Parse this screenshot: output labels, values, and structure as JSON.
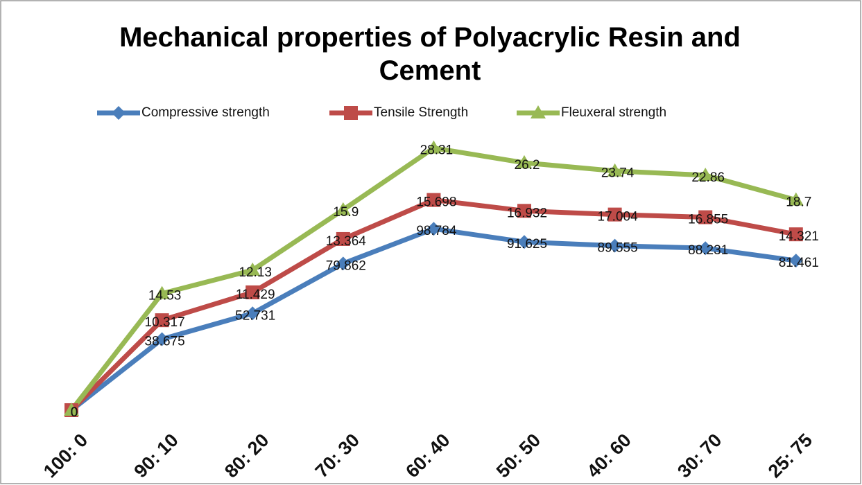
{
  "chart_data": {
    "type": "line",
    "stacked": true,
    "title": "Mechanical properties of Polyacrylic Resin and Cement",
    "categories": [
      "100: 0",
      "90: 10",
      "80: 20",
      "70: 30",
      "60: 40",
      "50: 50",
      "40: 60",
      "30: 70",
      "25: 75"
    ],
    "series": [
      {
        "name": "Compressive strength",
        "color": "#4a7ebb",
        "marker": "diamond",
        "values": [
          0,
          38.675,
          52.731,
          79.862,
          98.784,
          91.625,
          89.555,
          88.231,
          81.461
        ]
      },
      {
        "name": "Tensile Strength",
        "color": "#be4b48",
        "marker": "square",
        "values": [
          0,
          10.317,
          11.429,
          13.364,
          15.698,
          16.932,
          17.004,
          16.855,
          14.321
        ]
      },
      {
        "name": "Fleuxeral strength",
        "color": "#98b954",
        "marker": "triangle",
        "values": [
          0,
          14.53,
          12.13,
          15.9,
          28.31,
          26.2,
          23.74,
          22.86,
          18.7
        ]
      }
    ],
    "ylim": [
      0,
      160
    ],
    "legend": "top"
  }
}
